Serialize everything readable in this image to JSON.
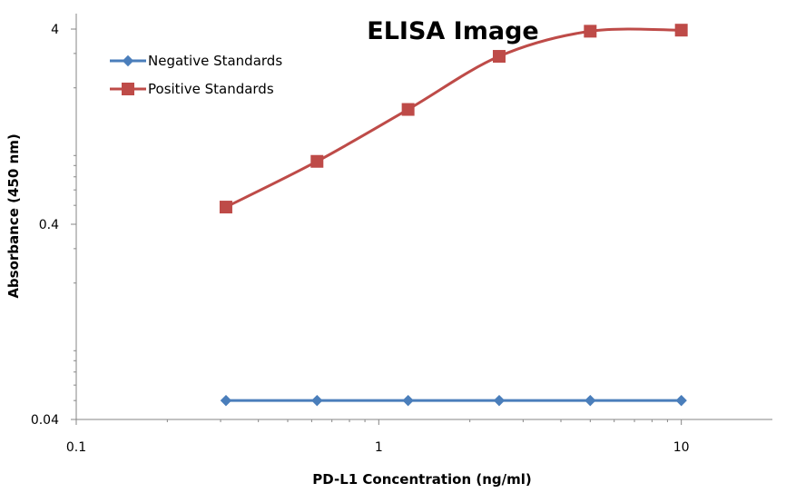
{
  "chart_data": {
    "type": "line",
    "title": "ELISA Image",
    "xlabel": "PD-L1 Concentration (ng/ml)",
    "ylabel": "Absorbance (450 nm)",
    "xscale": "log",
    "yscale": "log",
    "xlim": [
      0.1,
      20
    ],
    "ylim": [
      0.04,
      4.8
    ],
    "xticks": [
      {
        "value": 0.1,
        "label": "0.1"
      },
      {
        "value": 1,
        "label": "1"
      },
      {
        "value": 10,
        "label": "10"
      }
    ],
    "yticks": [
      {
        "value": 0.04,
        "label": "0.04"
      },
      {
        "value": 0.4,
        "label": "0.4"
      },
      {
        "value": 4,
        "label": "4"
      }
    ],
    "grid": false,
    "legend_position": "top-left",
    "series": [
      {
        "name": "Negative Standards",
        "color": "#4a7ebb",
        "marker": "diamond",
        "x": [
          0.3125,
          0.625,
          1.25,
          2.5,
          5,
          10
        ],
        "y": [
          0.05,
          0.05,
          0.05,
          0.05,
          0.05,
          0.05
        ]
      },
      {
        "name": "Positive Standards",
        "color": "#be4b48",
        "marker": "square",
        "x": [
          0.3125,
          0.625,
          1.25,
          2.5,
          5,
          10
        ],
        "y": [
          0.49,
          0.84,
          1.55,
          2.9,
          3.9,
          3.95
        ]
      }
    ]
  }
}
